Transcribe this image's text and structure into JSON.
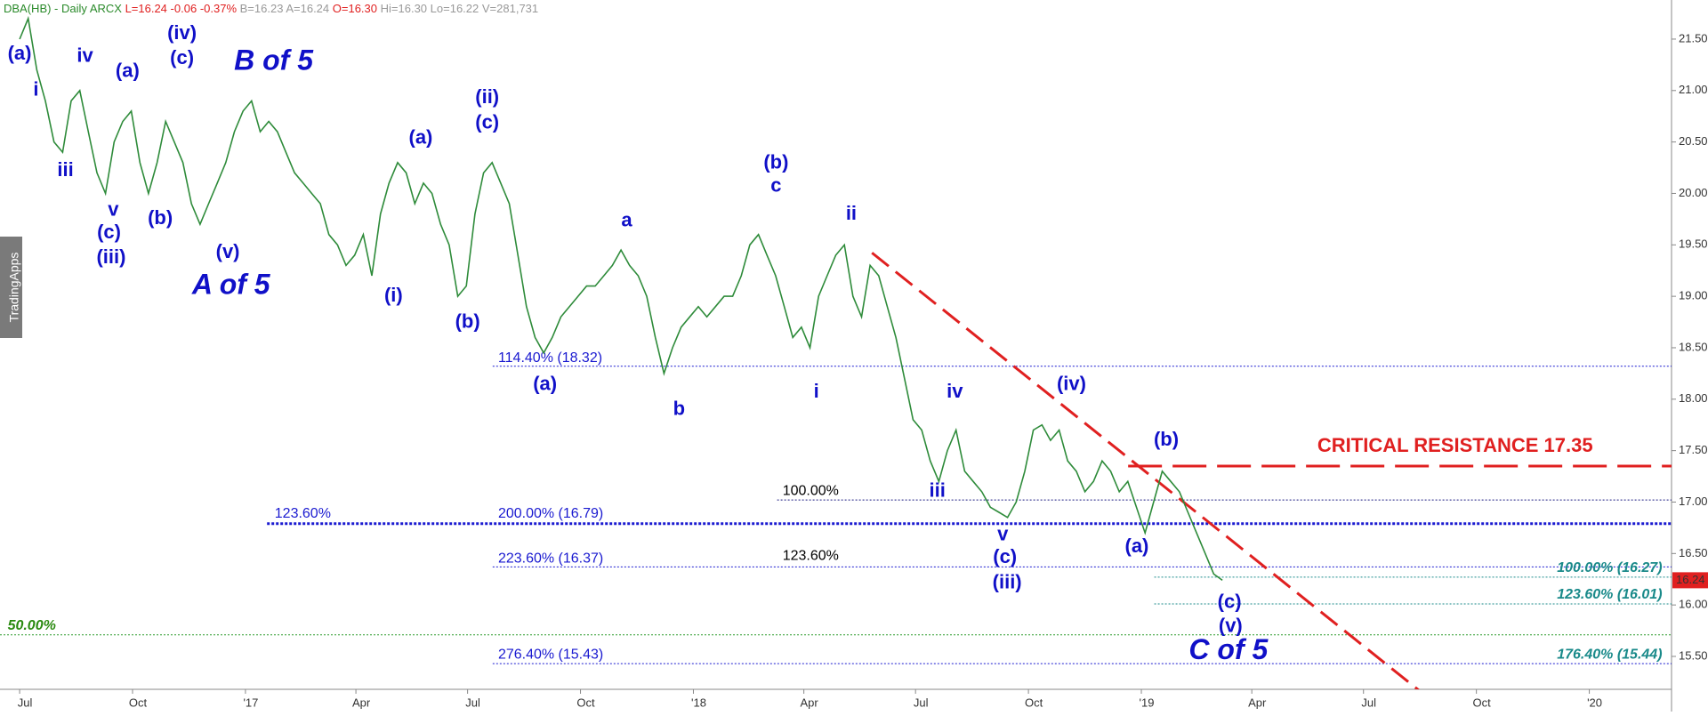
{
  "header": {
    "symbol": "DBA(HB) - Daily",
    "exchange": "ARCX",
    "last": "L=16.24",
    "change": "-0.06",
    "change_pct": "-0.37%",
    "bid": "B=16.23",
    "ask": "A=16.24",
    "open": "O=16.30",
    "high": "Hi=16.30",
    "low": "Lo=16.22",
    "volume": "V=281,731"
  },
  "side_tab": "TradingApps",
  "chart_data": {
    "type": "line",
    "xlim": [
      "2016-06-15",
      "2020-03-08"
    ],
    "xticks": [
      {
        "value": "2016-07-01",
        "label": "Jul"
      },
      {
        "value": "2016-10-01",
        "label": "Oct"
      },
      {
        "value": "2017-01-01",
        "label": "'17"
      },
      {
        "value": "2017-04-01",
        "label": "Apr"
      },
      {
        "value": "2017-07-01",
        "label": "Jul"
      },
      {
        "value": "2017-10-01",
        "label": "Oct"
      },
      {
        "value": "2018-01-01",
        "label": "'18"
      },
      {
        "value": "2018-04-01",
        "label": "Apr"
      },
      {
        "value": "2018-07-01",
        "label": "Jul"
      },
      {
        "value": "2018-10-01",
        "label": "Oct"
      },
      {
        "value": "2019-01-01",
        "label": "'19"
      },
      {
        "value": "2019-04-01",
        "label": "Apr"
      },
      {
        "value": "2019-07-01",
        "label": "Jul"
      },
      {
        "value": "2019-10-01",
        "label": "Oct"
      },
      {
        "value": "2020-01-01",
        "label": "'20"
      }
    ],
    "ylim": [
      15.18,
      21.88
    ],
    "yticks": [
      {
        "value": 15.5,
        "label": "15.50"
      },
      {
        "value": 16,
        "label": "16.00"
      },
      {
        "value": 16.5,
        "label": "16.50"
      },
      {
        "value": 17,
        "label": "17.00"
      },
      {
        "value": 17.5,
        "label": "17.50"
      },
      {
        "value": 18,
        "label": "18.00"
      },
      {
        "value": 18.5,
        "label": "18.50"
      },
      {
        "value": 19,
        "label": "19.00"
      },
      {
        "value": 19.5,
        "label": "19.50"
      },
      {
        "value": 20,
        "label": "20.00"
      },
      {
        "value": 20.5,
        "label": "20.50"
      },
      {
        "value": 21,
        "label": "21.00"
      },
      {
        "value": 21.5,
        "label": "21.50"
      }
    ],
    "last_price": 16.24,
    "series": [
      {
        "color": "#2e8b3a",
        "x": [
          "2016-07-01",
          "2016-07-08",
          "2016-07-15",
          "2016-07-22",
          "2016-07-29",
          "2016-08-05",
          "2016-08-12",
          "2016-08-19",
          "2016-08-26",
          "2016-09-02",
          "2016-09-09",
          "2016-09-16",
          "2016-09-23",
          "2016-09-30",
          "2016-10-07",
          "2016-10-14",
          "2016-10-21",
          "2016-10-28",
          "2016-11-04",
          "2016-11-11",
          "2016-11-18",
          "2016-11-25",
          "2016-12-02",
          "2016-12-09",
          "2016-12-16",
          "2016-12-23",
          "2016-12-30",
          "2017-01-06",
          "2017-01-13",
          "2017-01-20",
          "2017-01-27",
          "2017-02-03",
          "2017-02-10",
          "2017-02-17",
          "2017-02-24",
          "2017-03-03",
          "2017-03-10",
          "2017-03-17",
          "2017-03-24",
          "2017-03-31",
          "2017-04-07",
          "2017-04-14",
          "2017-04-21",
          "2017-04-28",
          "2017-05-05",
          "2017-05-12",
          "2017-05-19",
          "2017-05-26",
          "2017-06-02",
          "2017-06-09",
          "2017-06-16",
          "2017-06-23",
          "2017-06-30",
          "2017-07-07",
          "2017-07-14",
          "2017-07-21",
          "2017-07-28",
          "2017-08-04",
          "2017-08-11",
          "2017-08-18",
          "2017-08-25",
          "2017-09-01",
          "2017-09-08",
          "2017-09-15",
          "2017-09-22",
          "2017-09-29",
          "2017-10-06",
          "2017-10-13",
          "2017-10-20",
          "2017-10-27",
          "2017-11-03",
          "2017-11-10",
          "2017-11-17",
          "2017-11-24",
          "2017-12-01",
          "2017-12-08",
          "2017-12-15",
          "2017-12-22",
          "2017-12-29",
          "2018-01-05",
          "2018-01-12",
          "2018-01-19",
          "2018-01-26",
          "2018-02-02",
          "2018-02-09",
          "2018-02-16",
          "2018-02-23",
          "2018-03-02",
          "2018-03-09",
          "2018-03-16",
          "2018-03-23",
          "2018-03-30",
          "2018-04-06",
          "2018-04-13",
          "2018-04-20",
          "2018-04-27",
          "2018-05-04",
          "2018-05-11",
          "2018-05-18",
          "2018-05-25",
          "2018-06-01",
          "2018-06-08",
          "2018-06-15",
          "2018-06-22",
          "2018-06-29",
          "2018-07-06",
          "2018-07-13",
          "2018-07-20",
          "2018-07-27",
          "2018-08-03",
          "2018-08-10",
          "2018-08-17",
          "2018-08-24",
          "2018-08-31",
          "2018-09-07",
          "2018-09-14",
          "2018-09-21",
          "2018-09-28",
          "2018-10-05",
          "2018-10-12",
          "2018-10-19",
          "2018-10-26",
          "2018-11-02",
          "2018-11-09",
          "2018-11-16",
          "2018-11-23",
          "2018-11-30",
          "2018-12-07",
          "2018-12-14",
          "2018-12-21",
          "2018-12-28",
          "2019-01-04",
          "2019-01-11",
          "2019-01-18",
          "2019-01-25",
          "2019-02-01",
          "2019-02-08",
          "2019-02-15",
          "2019-02-22",
          "2019-03-01",
          "2019-03-08"
        ],
        "values": [
          21.5,
          21.7,
          21.2,
          20.9,
          20.5,
          20.4,
          20.9,
          21.0,
          20.6,
          20.2,
          20.0,
          20.5,
          20.7,
          20.8,
          20.3,
          20.0,
          20.3,
          20.7,
          20.5,
          20.3,
          19.9,
          19.7,
          19.9,
          20.1,
          20.3,
          20.6,
          20.8,
          20.9,
          20.6,
          20.7,
          20.6,
          20.4,
          20.2,
          20.1,
          20.0,
          19.9,
          19.6,
          19.5,
          19.3,
          19.4,
          19.6,
          19.2,
          19.8,
          20.1,
          20.3,
          20.2,
          19.9,
          20.1,
          20.0,
          19.7,
          19.5,
          19.0,
          19.1,
          19.8,
          20.2,
          20.3,
          20.1,
          19.9,
          19.4,
          18.9,
          18.6,
          18.45,
          18.6,
          18.8,
          18.9,
          19.0,
          19.1,
          19.1,
          19.2,
          19.3,
          19.45,
          19.3,
          19.2,
          19.0,
          18.6,
          18.25,
          18.5,
          18.7,
          18.8,
          18.9,
          18.8,
          18.9,
          19.0,
          19.0,
          19.2,
          19.5,
          19.6,
          19.4,
          19.2,
          18.9,
          18.6,
          18.7,
          18.5,
          19.0,
          19.2,
          19.4,
          19.5,
          19.0,
          18.8,
          19.3,
          19.2,
          18.9,
          18.6,
          18.2,
          17.8,
          17.7,
          17.4,
          17.2,
          17.5,
          17.7,
          17.3,
          17.2,
          17.1,
          16.95,
          16.9,
          16.85,
          17.0,
          17.3,
          17.7,
          17.75,
          17.6,
          17.7,
          17.4,
          17.3,
          17.1,
          17.2,
          17.4,
          17.3,
          17.1,
          17.2,
          16.95,
          16.7,
          17.0,
          17.3,
          17.2,
          17.1,
          16.9,
          16.7,
          16.5,
          16.3,
          16.24
        ]
      }
    ],
    "levels": [
      {
        "value": 18.32,
        "color": "#1a1ad0",
        "labels": [
          {
            "text": "114.40% (18.32)",
            "color": "#1a1ad0"
          }
        ]
      },
      {
        "value": 17.35,
        "color": "#e02020",
        "labels": [
          {
            "text": "CRITICAL RESISTANCE 17.35",
            "color": "#e02020"
          }
        ]
      },
      {
        "value": 17.02,
        "color": "#1a1a80",
        "labels": [
          {
            "text": "100.00%",
            "color": "#000000"
          }
        ]
      },
      {
        "value": 16.79,
        "color": "#1a1ad0",
        "labels": [
          {
            "text": "123.60%",
            "color": "#1a1ad0"
          },
          {
            "text": "200.00% (16.79)",
            "color": "#1a1ad0"
          }
        ]
      },
      {
        "value": 16.37,
        "color": "#1a1ad0",
        "labels": [
          {
            "text": "223.60% (16.37)",
            "color": "#1a1ad0"
          },
          {
            "text": "123.60%",
            "color": "#000000"
          }
        ]
      },
      {
        "value": 16.27,
        "color": "#1a8a8a",
        "labels": [
          {
            "text": "100.00% (16.27)",
            "color": "#1a8a8a"
          }
        ]
      },
      {
        "value": 16.01,
        "color": "#1a8a8a",
        "labels": [
          {
            "text": "123.60% (16.01)",
            "color": "#1a8a8a"
          }
        ]
      },
      {
        "value": 15.71,
        "color": "#2a9a2a",
        "labels": [
          {
            "text": "50.00%",
            "color": "#2a8a10"
          }
        ]
      },
      {
        "value": 15.43,
        "color": "#1a1ad0",
        "labels": [
          {
            "text": "276.40% (15.43)",
            "color": "#1a1ad0"
          },
          {
            "text": "176.40% (15.44)",
            "color": "#1a8a8a"
          }
        ]
      }
    ],
    "annotations": [
      "(a)",
      "i",
      "iv",
      "iii",
      "(a)",
      "(iv)",
      "(c)",
      "B of 5",
      "v",
      "(c)",
      "(iii)",
      "(b)",
      "(v)",
      "A of 5",
      "(a)",
      "(ii)",
      "(c)",
      "(i)",
      "(b)",
      "(a)",
      "a",
      "(b)",
      "c",
      "b",
      "ii",
      "i",
      "iv",
      "iii",
      "(iv)",
      "v",
      "(c)",
      "(iii)",
      "(a)",
      "(b)",
      "(c)",
      "(v)",
      "C of 5"
    ]
  }
}
